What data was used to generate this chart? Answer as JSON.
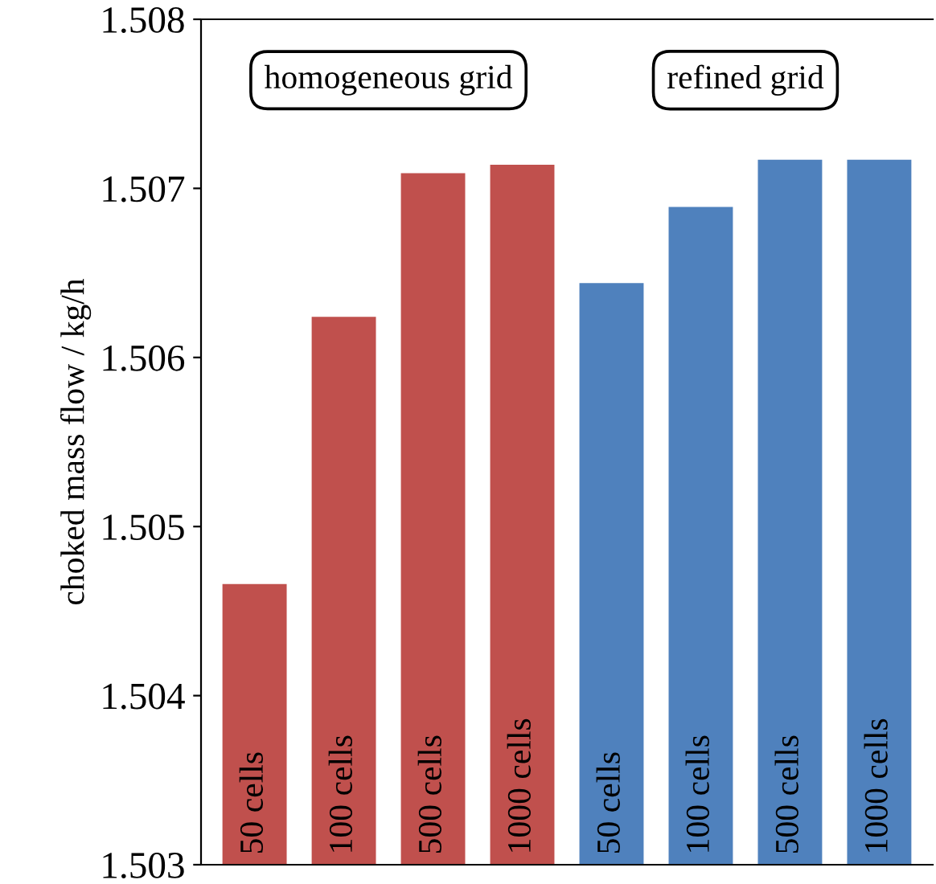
{
  "chart_data": {
    "type": "bar",
    "ylabel": "choked mass flow / kg/h",
    "categories": [
      "50 cells",
      "100 cells",
      "500 cells",
      "1000 cells",
      "50 cells",
      "100 cells",
      "500 cells",
      "1000 cells"
    ],
    "series": [
      {
        "name": "homogeneous grid",
        "color": "#c0504d",
        "values": [
          1.50466,
          1.50624,
          1.50709,
          1.50714,
          null,
          null,
          null,
          null
        ]
      },
      {
        "name": "refined grid",
        "color": "#4f81bd",
        "values": [
          null,
          null,
          null,
          null,
          1.50644,
          1.50689,
          1.50717,
          1.50717
        ]
      }
    ],
    "ylim": [
      1.503,
      1.508
    ],
    "yticks": [
      1.503,
      1.504,
      1.505,
      1.506,
      1.507,
      1.508
    ],
    "grid": false,
    "legend": false
  }
}
